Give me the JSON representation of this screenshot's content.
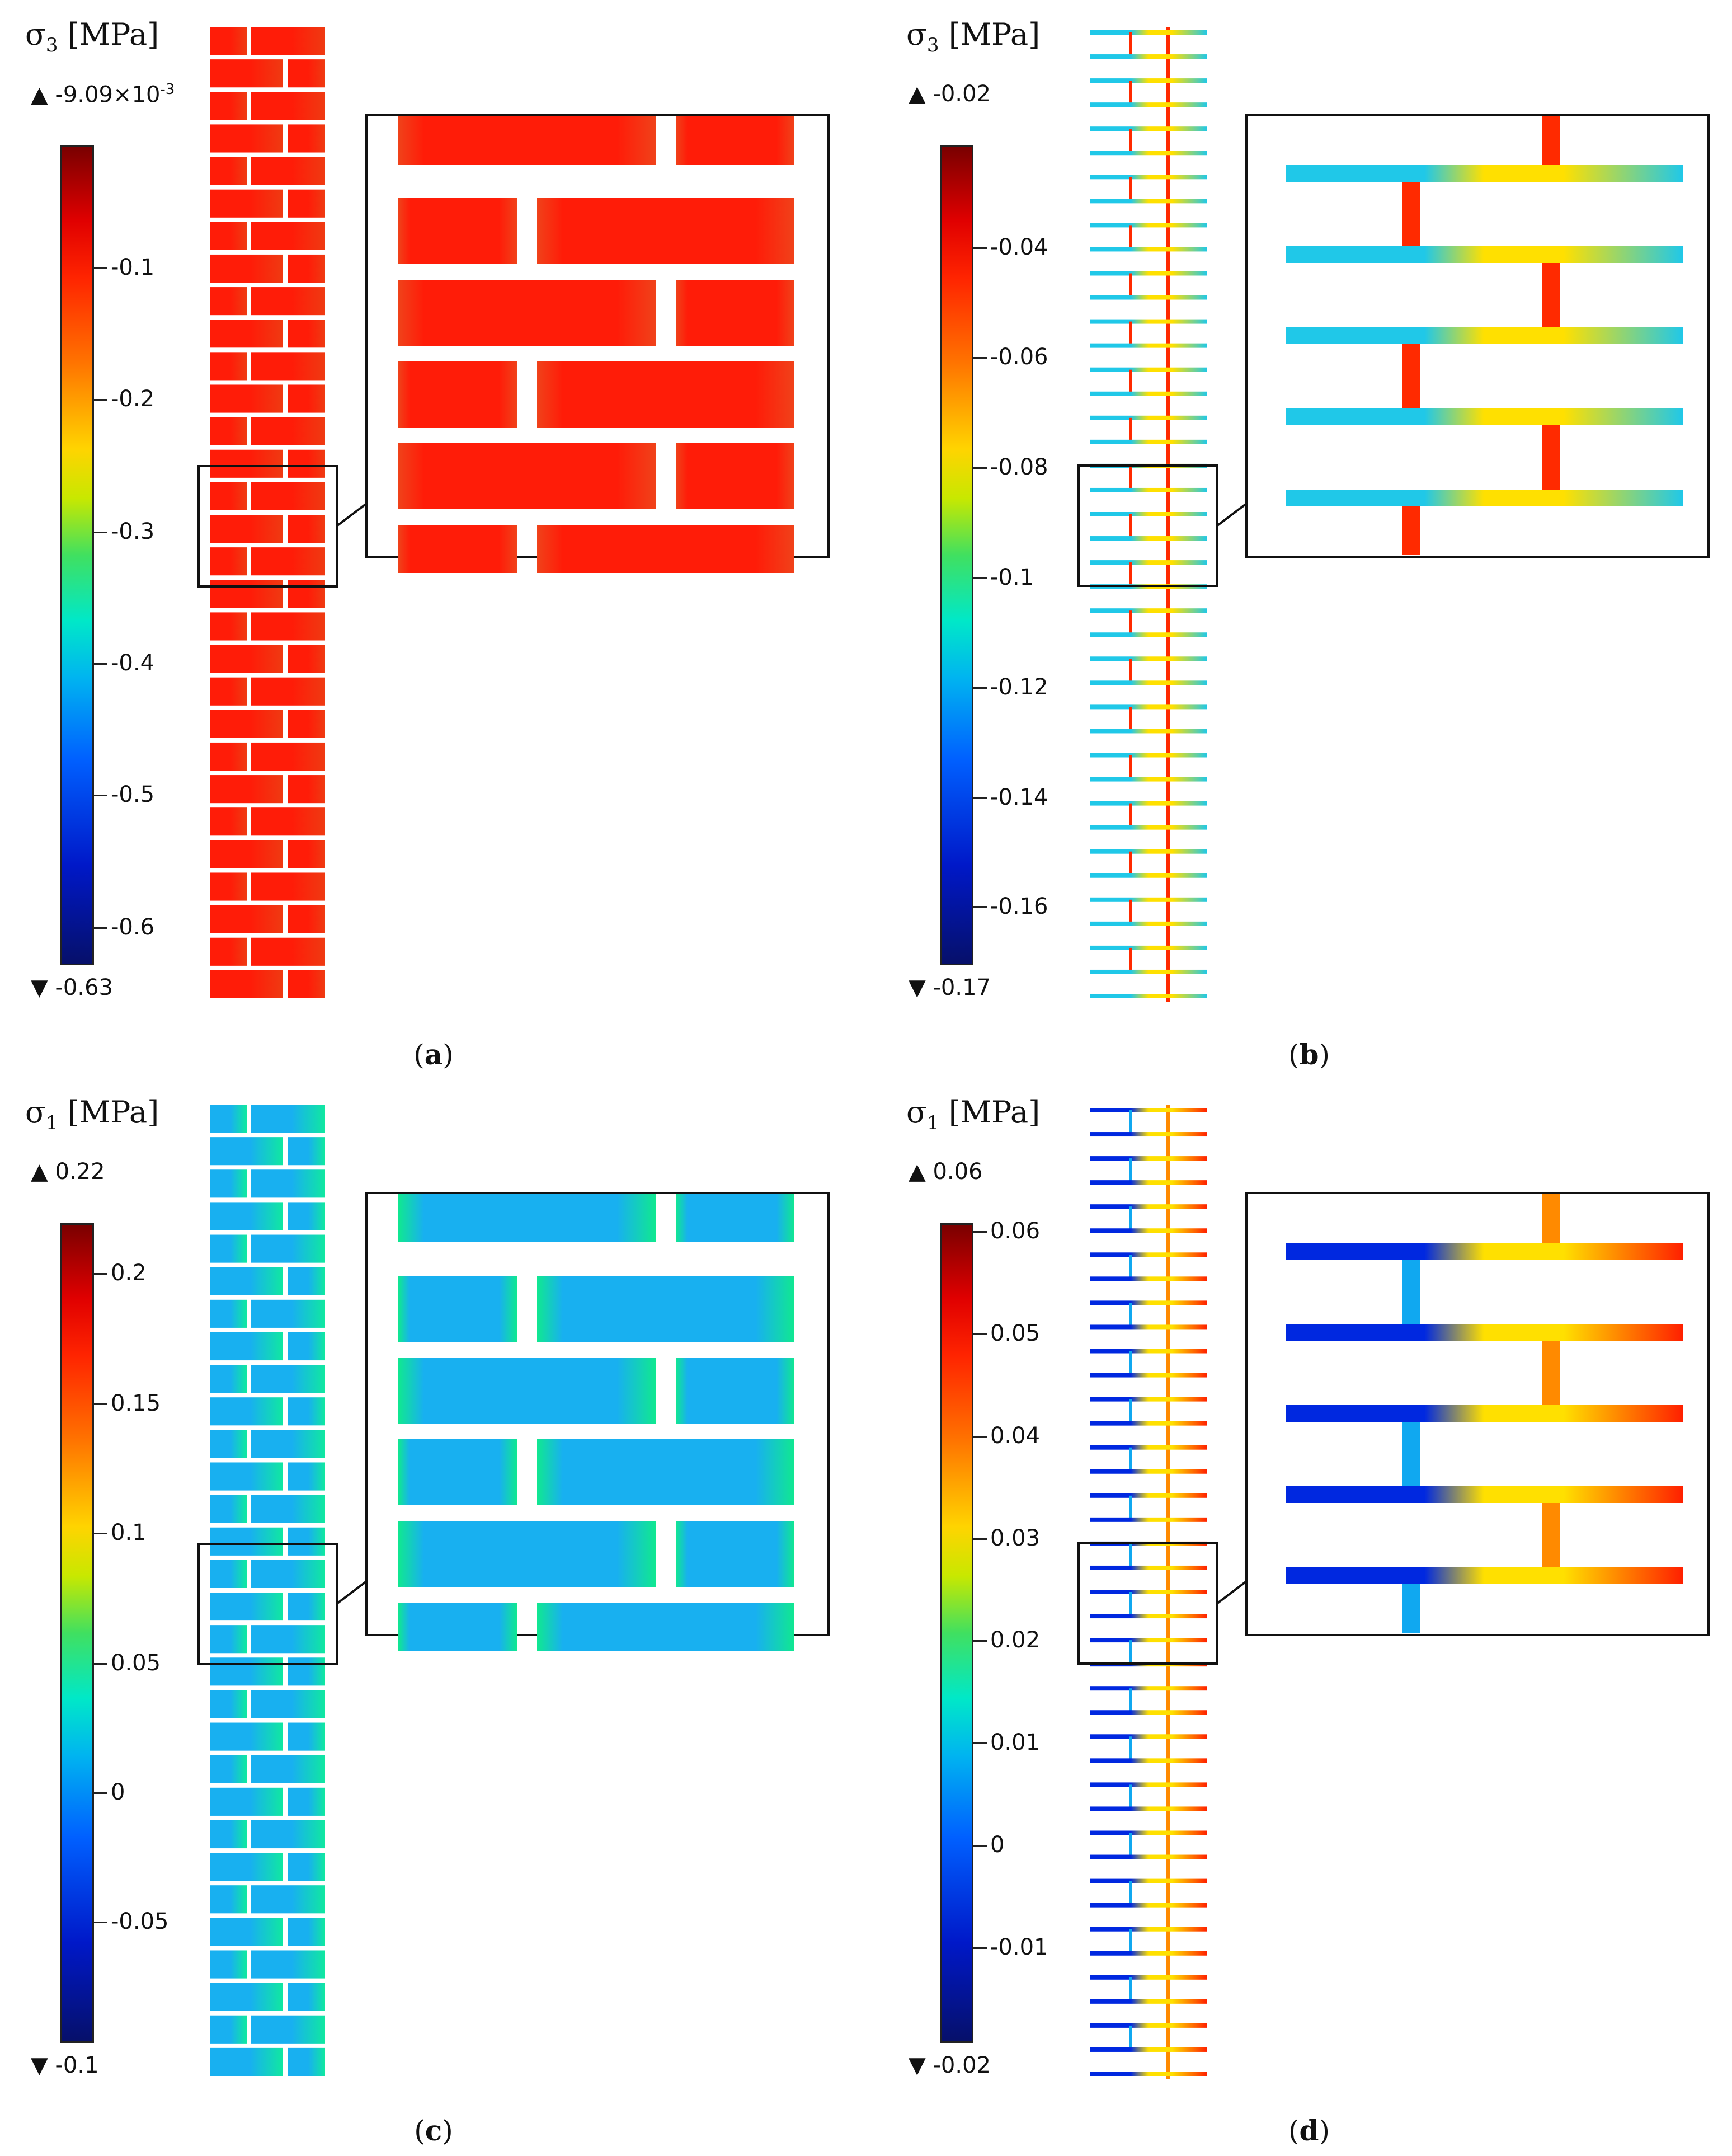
{
  "panels": [
    {
      "id": "a",
      "variable": "σ",
      "subscript": "3",
      "unit": "[MPa]",
      "max_label": "-9.09×10",
      "max_exponent": "-3",
      "min_label": "-0.63",
      "ticks": [
        "-0.1",
        "-0.2",
        "-0.3",
        "-0.4",
        "-0.5",
        "-0.6"
      ],
      "caption_letter": "a",
      "model": "masonry-wall",
      "colors": {
        "fill": "#ff1c08",
        "fill_edge": "#ef3a12",
        "inset_fill": "#ff1c08",
        "inset_edge": "#f0421a"
      }
    },
    {
      "id": "b",
      "variable": "σ",
      "subscript": "3",
      "unit": "[MPa]",
      "max_label": "-0.02",
      "max_exponent": "",
      "min_label": "-0.17",
      "ticks": [
        "-0.04",
        "-0.06",
        "-0.08",
        "-0.1",
        "-0.12",
        "-0.14",
        "-0.16"
      ],
      "caption_letter": "b",
      "model": "frame-structure",
      "colors": {
        "h_left": "#20c8e8",
        "h_mid": "#ffe000",
        "h_right": "#20c8e8",
        "vertical": "#ff2a00"
      }
    },
    {
      "id": "c",
      "variable": "σ",
      "subscript": "1",
      "unit": "[MPa]",
      "max_label": "0.22",
      "max_exponent": "",
      "min_label": "-0.1",
      "ticks": [
        "0.2",
        "0.15",
        "0.1",
        "0.05",
        "0",
        "-0.05"
      ],
      "caption_letter": "c",
      "model": "masonry-wall",
      "colors": {
        "fill": "#18b0f0",
        "fill_edge": "#10e8a0",
        "inset_fill": "#18b0f0",
        "inset_edge": "#10e890"
      }
    },
    {
      "id": "d",
      "variable": "σ",
      "subscript": "1",
      "unit": "[MPa]",
      "max_label": "0.06",
      "max_exponent": "",
      "min_label": "-0.02",
      "ticks": [
        "0.06",
        "0.05",
        "0.04",
        "0.03",
        "0.02",
        "0.01",
        "0",
        "-0.01"
      ],
      "caption_letter": "d",
      "model": "frame-structure",
      "colors": {
        "h_left": "#0028e0",
        "h_mid": "#ffe000",
        "h_right": "#ff2000",
        "vertical_left": "#10a8f0",
        "vertical_right": "#ff8a00"
      }
    }
  ]
}
